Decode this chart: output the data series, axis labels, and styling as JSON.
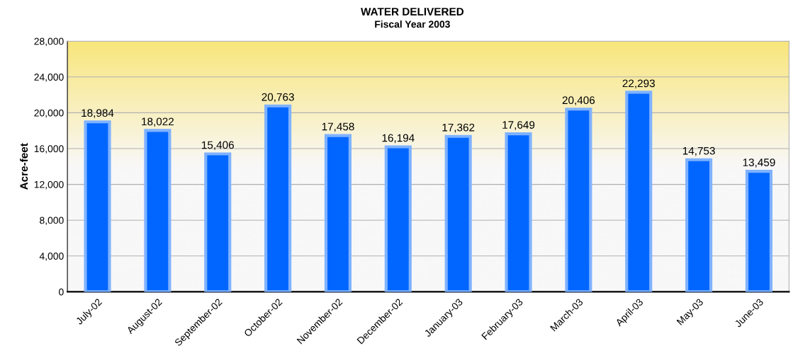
{
  "chart_data": {
    "type": "bar",
    "title": "WATER DELIVERED",
    "subtitle": "Fiscal Year 2003",
    "ylabel": "Acre-feet",
    "categories": [
      "July-02",
      "August-02",
      "September-02",
      "October-02",
      "November-02",
      "December-02",
      "January-03",
      "February-03",
      "March-03",
      "April-03",
      "May-03",
      "June-03"
    ],
    "values": [
      18984,
      18022,
      15406,
      20763,
      17458,
      16194,
      17362,
      17649,
      20406,
      22293,
      14753,
      13459
    ],
    "color": "#0066ff",
    "ylim": [
      0,
      28000
    ],
    "yticks": [
      {
        "value": 0,
        "label": "0"
      },
      {
        "value": 4000,
        "label": "4,000"
      },
      {
        "value": 8000,
        "label": "8,000"
      },
      {
        "value": 12000,
        "label": "12,000"
      },
      {
        "value": 16000,
        "label": "16,000"
      },
      {
        "value": 20000,
        "label": "20,000"
      },
      {
        "value": 24000,
        "label": "24,000"
      },
      {
        "value": 28000,
        "label": "28,000"
      }
    ],
    "value_labels": [
      "18,984",
      "18,022",
      "15,406",
      "20,763",
      "17,458",
      "16,194",
      "17,362",
      "17,649",
      "20,406",
      "22,293",
      "14,753",
      "13,459"
    ],
    "grid": "y"
  }
}
